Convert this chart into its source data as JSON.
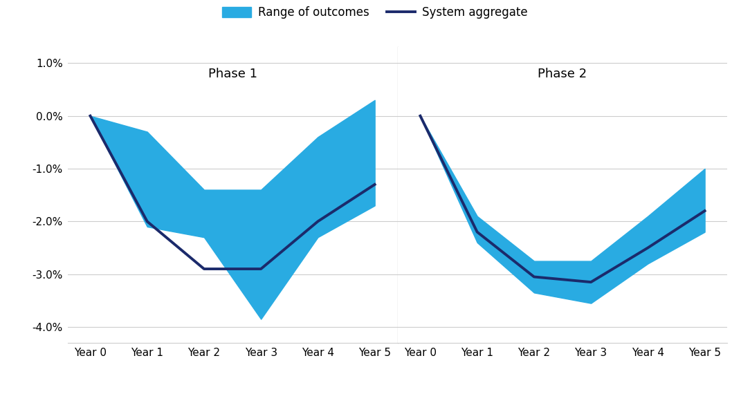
{
  "x_labels": [
    "Year 0",
    "Year 1",
    "Year 2",
    "Year 3",
    "Year 4",
    "Year 5"
  ],
  "x_values": [
    0,
    1,
    2,
    3,
    4,
    5
  ],
  "phase1": {
    "title": "Phase 1",
    "aggregate": [
      0.0,
      -2.0,
      -2.9,
      -2.9,
      -2.0,
      -1.3
    ],
    "upper": [
      0.0,
      -0.3,
      -1.4,
      -1.4,
      -0.4,
      0.3
    ],
    "lower": [
      0.0,
      -2.1,
      -2.3,
      -3.85,
      -2.3,
      -1.7
    ]
  },
  "phase2": {
    "title": "Phase 2",
    "aggregate": [
      0.0,
      -2.2,
      -3.05,
      -3.15,
      -2.5,
      -1.8
    ],
    "upper": [
      0.0,
      -1.9,
      -2.75,
      -2.75,
      -1.9,
      -1.0
    ],
    "lower": [
      0.0,
      -2.4,
      -3.35,
      -3.55,
      -2.8,
      -2.2
    ]
  },
  "ylim": [
    -4.3,
    1.3
  ],
  "yticks": [
    1.0,
    0.0,
    -1.0,
    -2.0,
    -3.0,
    -4.0
  ],
  "ytick_labels": [
    "1.0%",
    "0.0%",
    "-1.0%",
    "-2.0%",
    "-3.0%",
    "-4.0%"
  ],
  "fill_color": "#29ABE2",
  "fill_alpha": 1.0,
  "line_color": "#1B2A6B",
  "line_width": 2.8,
  "background_color": "#FFFFFF",
  "grid_color": "#CCCCCC",
  "legend_fill_label": "Range of outcomes",
  "legend_line_label": "System aggregate",
  "phase_label_fontsize": 13,
  "tick_fontsize": 11,
  "legend_fontsize": 12
}
